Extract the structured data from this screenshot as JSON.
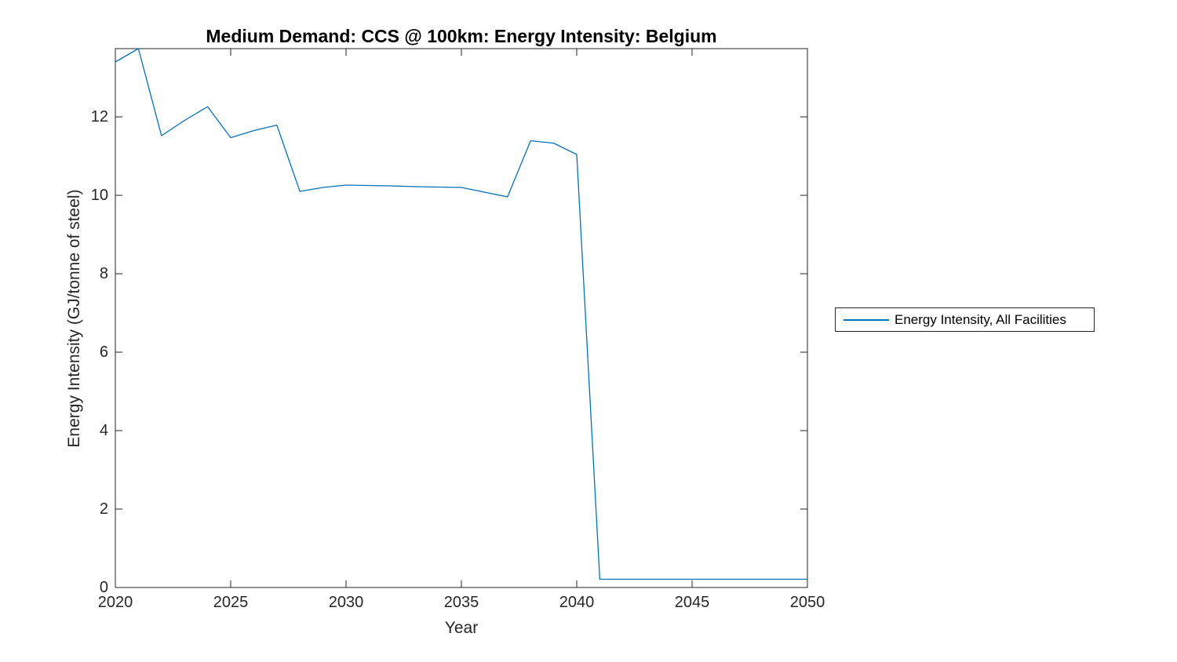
{
  "figure": {
    "background": "#ffffff"
  },
  "chart_data": {
    "type": "line",
    "title": "Medium Demand: CCS @ 100km: Energy Intensity: Belgium",
    "xlabel": "Year",
    "ylabel": "Energy Intensity (GJ/tonne of steel)",
    "xlim": [
      2020,
      2050
    ],
    "ylim": [
      0,
      13.74
    ],
    "x_ticks": [
      2020,
      2025,
      2030,
      2035,
      2040,
      2045,
      2050
    ],
    "y_ticks": [
      0,
      2,
      4,
      6,
      8,
      10,
      12
    ],
    "grid": false,
    "box": true,
    "tick_direction": "in",
    "axis_color": "#262626",
    "text_color": "#262626",
    "title_color": "#000000",
    "legend": {
      "position": "outside-right",
      "border_color": "#262626",
      "entries": [
        {
          "label": "Energy Intensity, All Facilities",
          "color": "#0072BD"
        }
      ]
    },
    "series": [
      {
        "name": "Energy Intensity, All Facilities",
        "color": "#0072BD",
        "x": [
          2020,
          2021,
          2022,
          2023,
          2024,
          2025,
          2026,
          2027,
          2028,
          2029,
          2030,
          2031,
          2032,
          2033,
          2034,
          2035,
          2036,
          2037,
          2038,
          2039,
          2040,
          2041,
          2042,
          2043,
          2044,
          2045,
          2046,
          2047,
          2048,
          2049,
          2050
        ],
        "values": [
          13.4,
          13.74,
          11.52,
          11.91,
          12.26,
          11.47,
          11.65,
          11.79,
          10.1,
          10.2,
          10.26,
          10.25,
          10.24,
          10.22,
          10.21,
          10.2,
          10.08,
          9.96,
          11.39,
          11.33,
          11.04,
          0.21,
          0.21,
          0.21,
          0.21,
          0.21,
          0.21,
          0.21,
          0.21,
          0.21,
          0.21
        ]
      }
    ]
  }
}
